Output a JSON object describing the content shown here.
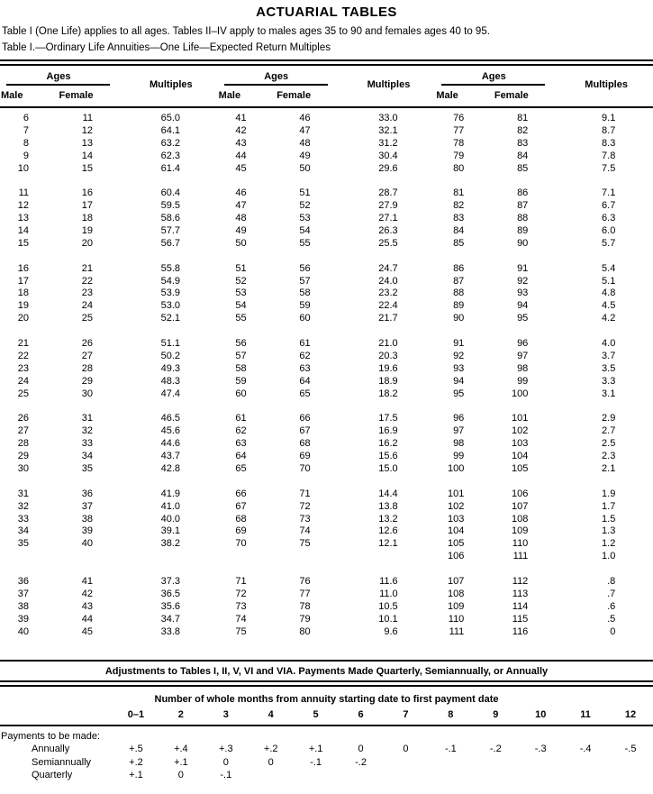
{
  "page": {
    "title": "ACTUARIAL TABLES",
    "intro_line": "Table I (One Life) applies to all ages. Tables II–IV apply to males ages 35 to 90 and females ages 40 to 95.",
    "table_caption": "Table I.—Ordinary Life Annuities—One Life—Expected Return Multiples"
  },
  "main_table": {
    "group_headers": {
      "ages": "Ages",
      "male": "Male",
      "female": "Female",
      "multiples": "Multiples"
    },
    "columns_per_group": [
      "Male",
      "Female",
      "Multiples"
    ],
    "blocks": [
      {
        "rows": [
          [
            "6",
            "11",
            "65.0",
            "41",
            "46",
            "33.0",
            "76",
            "81",
            "9.1"
          ],
          [
            "7",
            "12",
            "64.1",
            "42",
            "47",
            "32.1",
            "77",
            "82",
            "8.7"
          ],
          [
            "8",
            "13",
            "63.2",
            "43",
            "48",
            "31.2",
            "78",
            "83",
            "8.3"
          ],
          [
            "9",
            "14",
            "62.3",
            "44",
            "49",
            "30.4",
            "79",
            "84",
            "7.8"
          ],
          [
            "10",
            "15",
            "61.4",
            "45",
            "50",
            "29.6",
            "80",
            "85",
            "7.5"
          ]
        ]
      },
      {
        "rows": [
          [
            "11",
            "16",
            "60.4",
            "46",
            "51",
            "28.7",
            "81",
            "86",
            "7.1"
          ],
          [
            "12",
            "17",
            "59.5",
            "47",
            "52",
            "27.9",
            "82",
            "87",
            "6.7"
          ],
          [
            "13",
            "18",
            "58.6",
            "48",
            "53",
            "27.1",
            "83",
            "88",
            "6.3"
          ],
          [
            "14",
            "19",
            "57.7",
            "49",
            "54",
            "26.3",
            "84",
            "89",
            "6.0"
          ],
          [
            "15",
            "20",
            "56.7",
            "50",
            "55",
            "25.5",
            "85",
            "90",
            "5.7"
          ]
        ]
      },
      {
        "rows": [
          [
            "16",
            "21",
            "55.8",
            "51",
            "56",
            "24.7",
            "86",
            "91",
            "5.4"
          ],
          [
            "17",
            "22",
            "54.9",
            "52",
            "57",
            "24.0",
            "87",
            "92",
            "5.1"
          ],
          [
            "18",
            "23",
            "53.9",
            "53",
            "58",
            "23.2",
            "88",
            "93",
            "4.8"
          ],
          [
            "19",
            "24",
            "53.0",
            "54",
            "59",
            "22.4",
            "89",
            "94",
            "4.5"
          ],
          [
            "20",
            "25",
            "52.1",
            "55",
            "60",
            "21.7",
            "90",
            "95",
            "4.2"
          ]
        ]
      },
      {
        "rows": [
          [
            "21",
            "26",
            "51.1",
            "56",
            "61",
            "21.0",
            "91",
            "96",
            "4.0"
          ],
          [
            "22",
            "27",
            "50.2",
            "57",
            "62",
            "20.3",
            "92",
            "97",
            "3.7"
          ],
          [
            "23",
            "28",
            "49.3",
            "58",
            "63",
            "19.6",
            "93",
            "98",
            "3.5"
          ],
          [
            "24",
            "29",
            "48.3",
            "59",
            "64",
            "18.9",
            "94",
            "99",
            "3.3"
          ],
          [
            "25",
            "30",
            "47.4",
            "60",
            "65",
            "18.2",
            "95",
            "100",
            "3.1"
          ]
        ]
      },
      {
        "rows": [
          [
            "26",
            "31",
            "46.5",
            "61",
            "66",
            "17.5",
            "96",
            "101",
            "2.9"
          ],
          [
            "27",
            "32",
            "45.6",
            "62",
            "67",
            "16.9",
            "97",
            "102",
            "2.7"
          ],
          [
            "28",
            "33",
            "44.6",
            "63",
            "68",
            "16.2",
            "98",
            "103",
            "2.5"
          ],
          [
            "29",
            "34",
            "43.7",
            "64",
            "69",
            "15.6",
            "99",
            "104",
            "2.3"
          ],
          [
            "30",
            "35",
            "42.8",
            "65",
            "70",
            "15.0",
            "100",
            "105",
            "2.1"
          ]
        ]
      },
      {
        "rows": [
          [
            "31",
            "36",
            "41.9",
            "66",
            "71",
            "14.4",
            "101",
            "106",
            "1.9"
          ],
          [
            "32",
            "37",
            "41.0",
            "67",
            "72",
            "13.8",
            "102",
            "107",
            "1.7"
          ],
          [
            "33",
            "38",
            "40.0",
            "68",
            "73",
            "13.2",
            "103",
            "108",
            "1.5"
          ],
          [
            "34",
            "39",
            "39.1",
            "69",
            "74",
            "12.6",
            "104",
            "109",
            "1.3"
          ],
          [
            "35",
            "40",
            "38.2",
            "70",
            "75",
            "12.1",
            "105",
            "110",
            "1.2"
          ],
          [
            "",
            "",
            "",
            "",
            "",
            "",
            "106",
            "111",
            "1.0"
          ]
        ]
      },
      {
        "rows": [
          [
            "36",
            "41",
            "37.3",
            "71",
            "76",
            "11.6",
            "107",
            "112",
            ".8"
          ],
          [
            "37",
            "42",
            "36.5",
            "72",
            "77",
            "11.0",
            "108",
            "113",
            ".7"
          ],
          [
            "38",
            "43",
            "35.6",
            "73",
            "78",
            "10.5",
            "109",
            "114",
            ".6"
          ],
          [
            "39",
            "44",
            "34.7",
            "74",
            "79",
            "10.1",
            "110",
            "115",
            ".5"
          ],
          [
            "40",
            "45",
            "33.8",
            "75",
            "80",
            "9.6",
            "111",
            "116",
            "0"
          ]
        ]
      }
    ]
  },
  "adjustments": {
    "title": "Adjustments to Tables I, II, V, VI and VIA. Payments Made Quarterly, Semiannually, or Annually",
    "subtitle": "Number of whole months from annuity starting date to first payment date",
    "columns": [
      "0–1",
      "2",
      "3",
      "4",
      "5",
      "6",
      "7",
      "8",
      "9",
      "10",
      "11",
      "12"
    ],
    "row_label_header": "Payments to be made:",
    "rows": [
      {
        "label": "Annually",
        "values": [
          "+.5",
          "+.4",
          "+.3",
          "+.2",
          "+.1",
          "0",
          "0",
          "-.1",
          "-.2",
          "-.3",
          "-.4",
          "-.5"
        ]
      },
      {
        "label": "Semiannually",
        "values": [
          "+.2",
          "+.1",
          "0",
          "0",
          "-.1",
          "-.2",
          "",
          "",
          "",
          "",
          "",
          ""
        ]
      },
      {
        "label": "Quarterly",
        "values": [
          "+.1",
          "0",
          "-.1",
          "",
          "",
          "",
          "",
          "",
          "",
          "",
          "",
          ""
        ]
      }
    ]
  }
}
